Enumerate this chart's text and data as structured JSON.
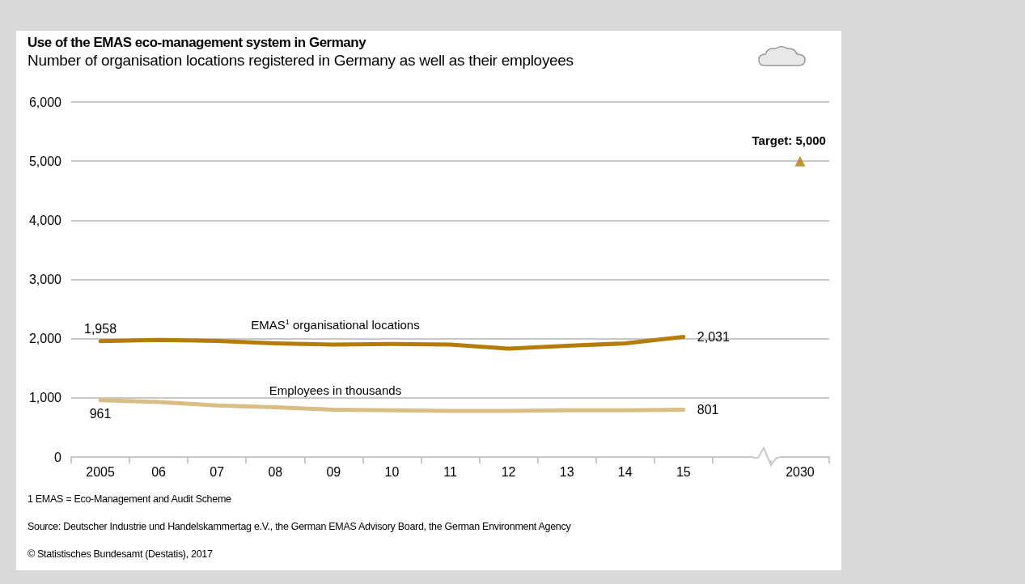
{
  "chart_data": {
    "type": "line",
    "title": "Use of the EMAS eco-management system in Germany",
    "subtitle": "Number of organisation locations registered in Germany as well as their employees",
    "categories": [
      "2005",
      "06",
      "07",
      "08",
      "09",
      "10",
      "11",
      "12",
      "13",
      "14",
      "15",
      null,
      "2030"
    ],
    "series": [
      {
        "name": "EMAS$^{1}$ organisational locations",
        "color": "#b57c0a",
        "values": [
          1958,
          1980,
          1960,
          1920,
          1900,
          1910,
          1900,
          1830,
          1880,
          1920,
          2031,
          null,
          null
        ],
        "value_labels": [
          "1,958",
          null,
          null,
          null,
          null,
          null,
          null,
          null,
          null,
          null,
          "2,031",
          null,
          null
        ]
      },
      {
        "name": "Employees in thousands",
        "color": "#d9bd85",
        "values": [
          961,
          930,
          870,
          840,
          800,
          790,
          780,
          780,
          790,
          790,
          801,
          null,
          null
        ],
        "value_labels": [
          "961",
          null,
          null,
          null,
          null,
          null,
          null,
          null,
          null,
          null,
          "801",
          null,
          null
        ]
      },
      {
        "type": "scatter",
        "marker": "triangle",
        "color": "#b57c0a",
        "values": [
          null,
          null,
          null,
          null,
          null,
          null,
          null,
          null,
          null,
          null,
          null,
          null,
          5000
        ]
      }
    ],
    "ylim": [
      0,
      6000
    ],
    "yticks": [
      0,
      {
        "value": 1000,
        "label": "1,000"
      },
      {
        "value": 2000,
        "label": "2,000"
      },
      {
        "value": 3000,
        "label": "3,000"
      },
      {
        "value": 4000,
        "label": "4,000"
      },
      {
        "value": 5000,
        "label": "5,000"
      },
      {
        "value": 6000,
        "label": "6,000"
      }
    ],
    "grid": "y",
    "marker": "none",
    "annotations": [
      {
        "text": "Target: 5,000",
        "x": "2030",
        "y": 5000
      },
      "1 EMAS = Eco-Management and Audit Scheme",
      "Source: Deutscher Industrie und Handelskammertag e.V., the German EMAS Advisory Board, the German Environment Agency",
      "© Statistisches Bundesamt (Destatis), 2017"
    ]
  }
}
